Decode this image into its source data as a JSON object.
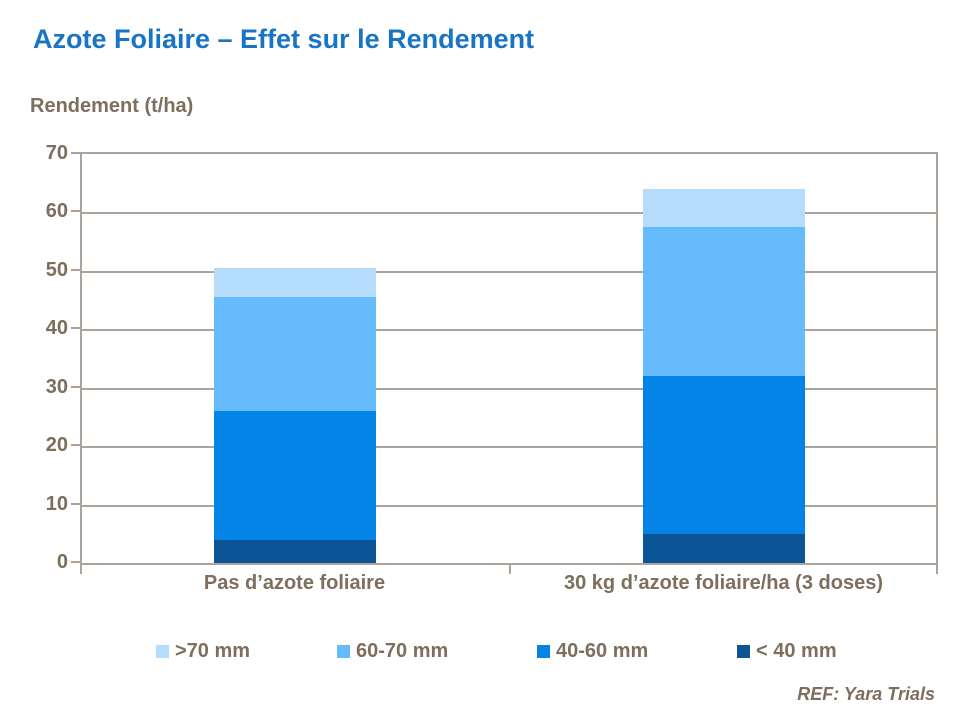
{
  "title": "Azote Foliaire – Effet sur le Rendement",
  "ref_label": "REF: Yara Trials",
  "colors": {
    "title_text": "#1874C5",
    "body_text": "#7D6E5D",
    "grid": "#ACA49C"
  },
  "chart_data": {
    "type": "bar",
    "stacked": true,
    "title": "Azote Foliaire – Effet sur le Rendement",
    "ylabel": "Rendement (t/ha)",
    "xlabel": "",
    "ylim": [
      0,
      70
    ],
    "yticks": [
      0,
      10,
      20,
      30,
      40,
      50,
      60,
      70
    ],
    "grid": true,
    "legend_position": "bottom",
    "categories": [
      "Pas d’azote foliaire",
      "30 kg d’azote foliaire/ha (3 doses)"
    ],
    "series": [
      {
        "name": "< 40 mm",
        "color": "#0B5597",
        "values": [
          4,
          5
        ]
      },
      {
        "name": "40-60 mm",
        "color": "#0584E8",
        "values": [
          22,
          27
        ]
      },
      {
        "name": "60-70 mm",
        "color": "#66BBFC",
        "values": [
          19.5,
          25.5
        ]
      },
      {
        "name": ">70 mm",
        "color": "#B5DCFA",
        "values": [
          5,
          6.5
        ]
      }
    ],
    "legend_order": [
      ">70 mm",
      "60-70 mm",
      "40-60 mm",
      "< 40 mm"
    ],
    "totals": [
      50.5,
      64
    ]
  }
}
